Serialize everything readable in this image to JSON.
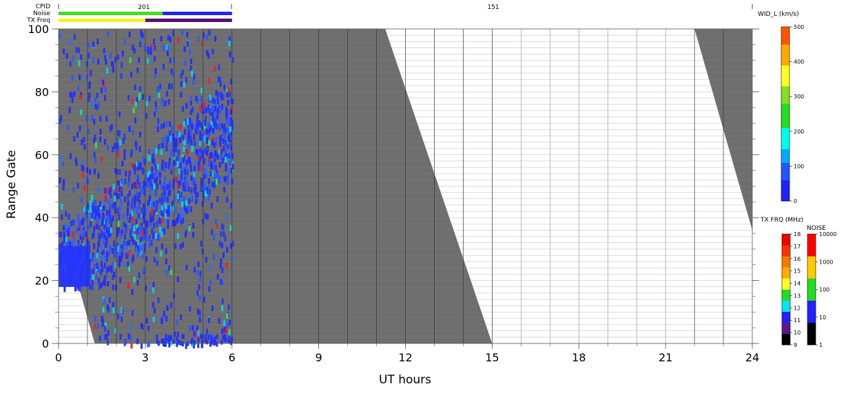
{
  "top_bars": {
    "cpid_label": "CPID",
    "noise_label": "Noise",
    "txfreq_label": "TX Freq",
    "cpid_values": [
      "201",
      "151"
    ]
  },
  "chart_data": {
    "type": "heatmap",
    "xlabel": "UT hours",
    "ylabel": "Range Gate",
    "xlim": [
      0,
      24
    ],
    "ylim": [
      0,
      100
    ],
    "xticks": [
      "0",
      "3",
      "6",
      "9",
      "12",
      "15",
      "18",
      "21",
      "24"
    ],
    "yticks": [
      "0",
      "20",
      "40",
      "60",
      "80",
      "100"
    ],
    "grid": "vertical hourly lines",
    "no_data_boundary_early": [
      [
        1.25,
        0
      ],
      [
        0.7,
        18
      ]
    ],
    "no_data_boundary_middle": [
      [
        11.3,
        100
      ],
      [
        15.0,
        0
      ]
    ],
    "no_data_boundary_late": [
      [
        22.0,
        100
      ],
      [
        24.0,
        36
      ]
    ],
    "scatter_region_hours": [
      0,
      6
    ],
    "colorbars": {
      "width": {
        "title": "WID_L (km/s)",
        "ticks": [
          "0",
          "100",
          "200",
          "300",
          "400",
          "500"
        ],
        "range": [
          0,
          500
        ]
      },
      "txfreq": {
        "title": "TX FRQ (MHz)",
        "ticks": [
          "9",
          "10",
          "11",
          "12",
          "13",
          "14",
          "15",
          "16",
          "17",
          "18"
        ],
        "colors": [
          "#000000",
          "#5a1a8a",
          "#2222ff",
          "#00e8f0",
          "#22dd22",
          "#ffff22",
          "#ffaa00",
          "#ff7700",
          "#ff3300",
          "#ee0000"
        ]
      },
      "noise": {
        "title": "NOISE",
        "ticks": [
          "1",
          "10",
          "100",
          "1000",
          "10000"
        ],
        "colors": [
          "#000000",
          "#2222ff",
          "#22dd22",
          "#ffcc00",
          "#ff0000"
        ]
      }
    },
    "colors": {
      "ground_scatter": "#6e6e6e",
      "low_width": "#2233ff",
      "noise_green": "#44dd22",
      "noise_blue": "#2222ee",
      "freq_yellow": "#ffee22",
      "freq_purple": "#551177"
    }
  }
}
